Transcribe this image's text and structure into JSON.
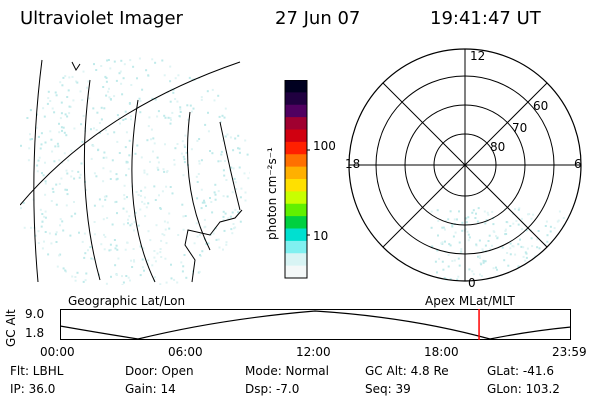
{
  "header": {
    "instrument": "Ultraviolet Imager",
    "date": "27 Jun 07",
    "time": "19:41:47 UT"
  },
  "colorbar": {
    "label": "photon cm⁻²s⁻¹",
    "ticks": [
      "100",
      "10"
    ],
    "colors": [
      "#000020",
      "#200040",
      "#500060",
      "#a00030",
      "#d00010",
      "#ff2000",
      "#ff7000",
      "#ffb000",
      "#ffe000",
      "#c8ff00",
      "#60f000",
      "#00d040",
      "#00e0d0",
      "#80f0f0",
      "#d8f4f4",
      "#f4f8f8"
    ]
  },
  "polar": {
    "lat_labels": [
      "80",
      "70",
      "60"
    ],
    "mlt_labels": {
      "top": "12",
      "left": "18",
      "right": "6",
      "bottom": "0"
    }
  },
  "panel_labels": {
    "left": "Geographic Lat/Lon",
    "right": "Apex MLat/MLT"
  },
  "altitude_plot": {
    "axis_title": "GC Alt",
    "y_ticks": [
      "9.0",
      "1.8"
    ],
    "x_ticks": [
      "00:00",
      "06:00",
      "12:00",
      "18:00",
      "23:59"
    ],
    "current_time_fraction": 0.8207,
    "marker_color": "#ff0000"
  },
  "status": {
    "filter": "Flt: LBHL",
    "ip": "IP: 36.0",
    "door": "Door: Open",
    "gain": "Gain: 14",
    "mode": "Mode: Normal",
    "dsp": "Dsp:    -7.0",
    "gc_alt": "GC Alt: 4.8 Re",
    "seq": "Seq: 39",
    "glat": "GLat: -41.6",
    "glon": "GLon: 103.2"
  }
}
